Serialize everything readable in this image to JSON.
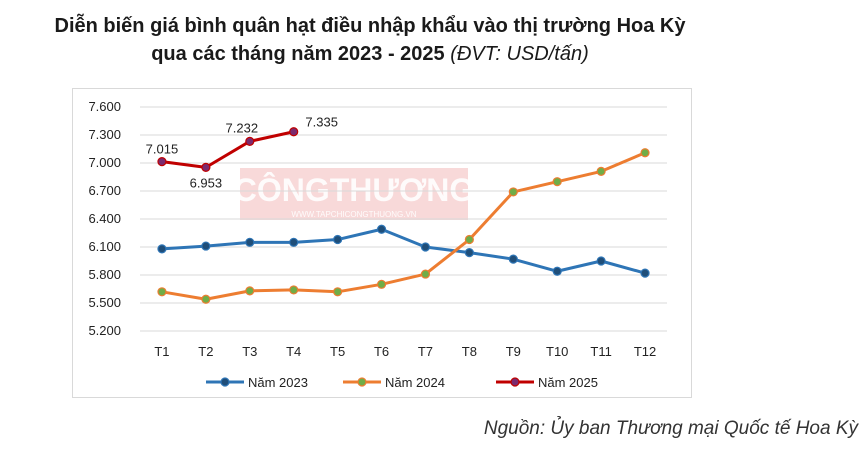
{
  "title": {
    "line1": "Diễn biến giá bình quân hạt điều nhập khẩu vào thị trường Hoa Kỳ",
    "line2": "qua các tháng năm 2023 - 2025",
    "unit": "(ĐVT: USD/tấn)"
  },
  "watermark": {
    "brand": "CÔNGTHƯƠNG",
    "site": "WWW.TAPCHICONGTHUONG.VN"
  },
  "source": "Nguồn: Ủy ban Thương mại Quốc tế Hoa Kỳ",
  "chart_data": {
    "type": "line",
    "categories": [
      "T1",
      "T2",
      "T3",
      "T4",
      "T5",
      "T6",
      "T7",
      "T8",
      "T9",
      "T10",
      "T11",
      "T12"
    ],
    "ylim": [
      5200,
      7600
    ],
    "yticks": [
      5200,
      5500,
      5800,
      6100,
      6400,
      6700,
      7000,
      7300,
      7600
    ],
    "ytick_labels": [
      "5.200",
      "5.500",
      "5.800",
      "6.100",
      "6.400",
      "6.700",
      "7.000",
      "7.300",
      "7.600"
    ],
    "grid": true,
    "legend_position": "bottom",
    "series": [
      {
        "name": "Năm 2023",
        "color": "#2e75b6",
        "marker": "#1f4e79",
        "values": [
          6080,
          6110,
          6150,
          6150,
          6180,
          6290,
          6100,
          6040,
          5970,
          5840,
          5950,
          5820
        ]
      },
      {
        "name": "Năm 2024",
        "color": "#ed7d31",
        "marker": "#70ad47",
        "values": [
          5620,
          5540,
          5630,
          5640,
          5620,
          5700,
          5810,
          6180,
          6690,
          6800,
          6910,
          7110
        ]
      },
      {
        "name": "Năm 2025",
        "color": "#c00000",
        "marker": "#7b2a6e",
        "values": [
          7015,
          6953,
          7232,
          7335,
          null,
          null,
          null,
          null,
          null,
          null,
          null,
          null
        ],
        "data_labels": [
          "7.015",
          "6.953",
          "7.232",
          "7.335"
        ]
      }
    ]
  }
}
